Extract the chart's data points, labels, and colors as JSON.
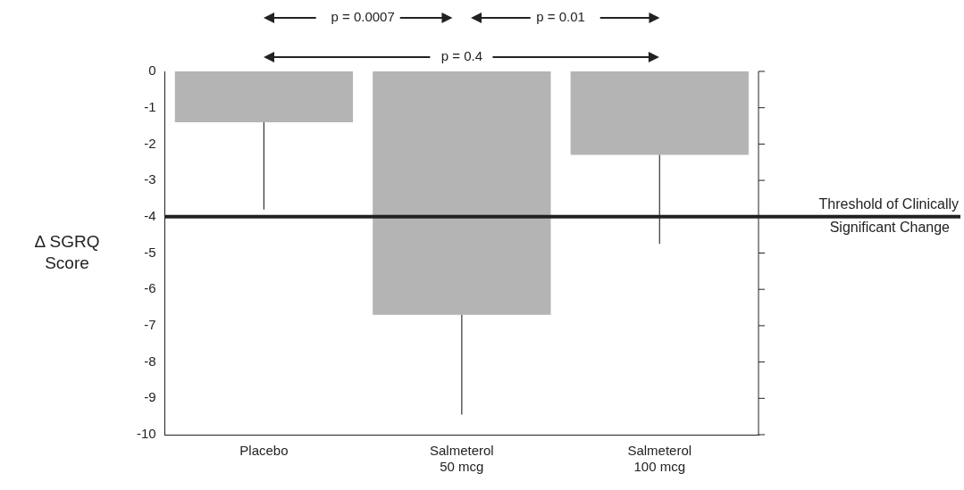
{
  "chart_data": {
    "type": "bar",
    "ylabel": "Δ SGRQ Score",
    "categories": [
      "Placebo",
      "Salmeterol 50 mcg",
      "Salmeterol 100 mcg"
    ],
    "values": [
      -1.4,
      -6.7,
      -2.3
    ],
    "errors": [
      [
        -3.8,
        -1.4
      ],
      [
        -9.45,
        -6.7
      ],
      [
        -4.75,
        -2.3
      ]
    ],
    "color": "#b4b4b4",
    "ylim": [
      -10,
      0
    ],
    "yticks": [
      -10,
      -9,
      -8,
      -7,
      -6,
      -5,
      -4,
      -3,
      -2,
      -1,
      0
    ],
    "ref_lines": [
      {
        "axis": "y",
        "value": -4,
        "label": "Threshold of Clinically Significant Change",
        "color": "#222222"
      }
    ],
    "annotations": [
      "p = 0.0007",
      "p = 0.01",
      "p = 0.4"
    ],
    "grid": false,
    "legend": false
  }
}
